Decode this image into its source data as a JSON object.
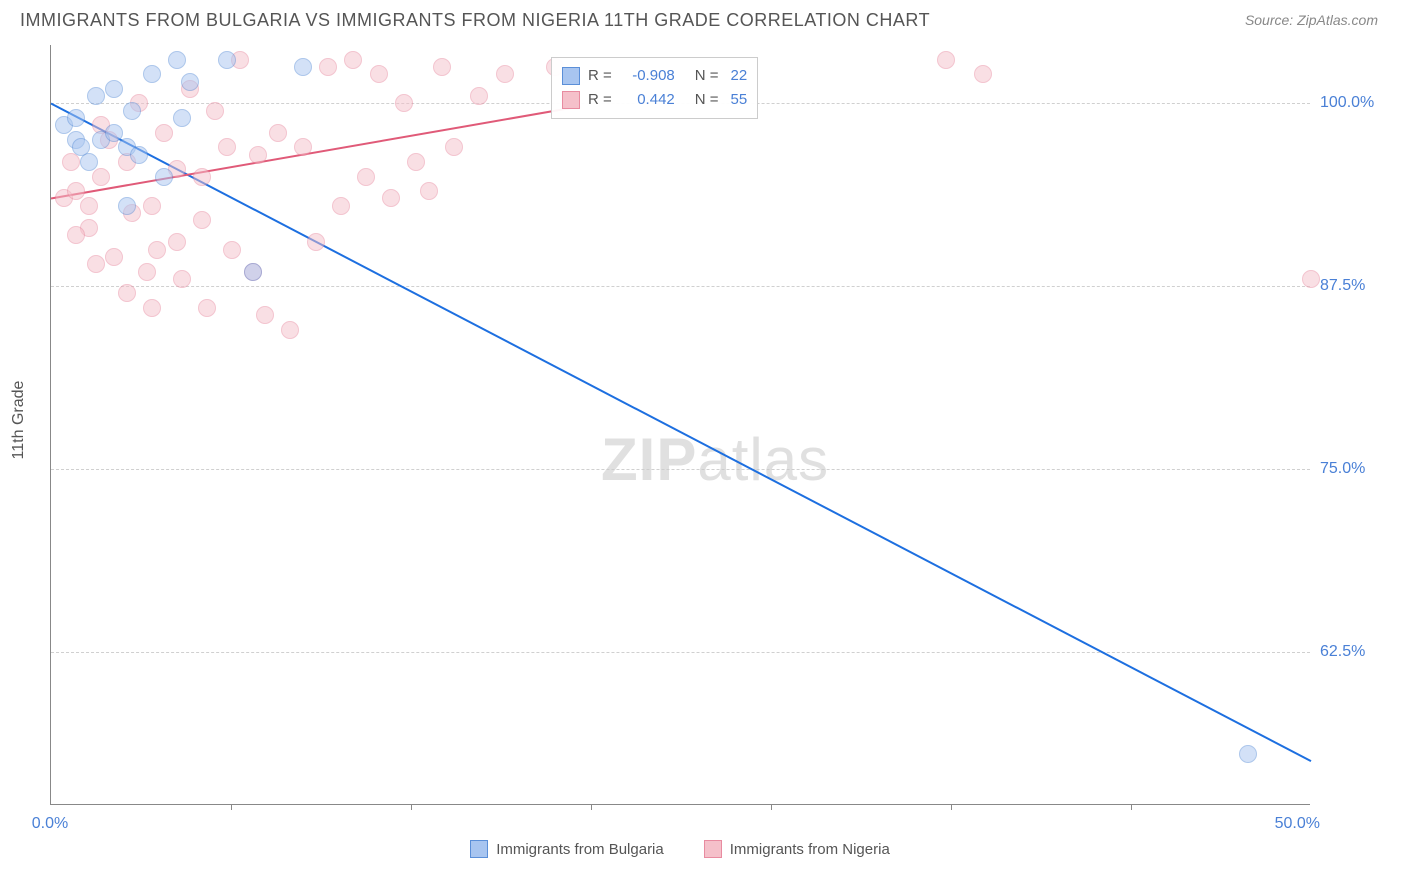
{
  "title": "IMMIGRANTS FROM BULGARIA VS IMMIGRANTS FROM NIGERIA 11TH GRADE CORRELATION CHART",
  "source": "Source: ZipAtlas.com",
  "watermark": {
    "part1": "ZIP",
    "part2": "atlas"
  },
  "y_axis_title": "11th Grade",
  "chart": {
    "type": "scatter",
    "xlim": [
      0,
      50
    ],
    "ylim": [
      52,
      104
    ],
    "x_ticks": [
      0,
      50
    ],
    "x_tick_labels": [
      "0.0%",
      "50.0%"
    ],
    "x_minor_ticks": [
      7.14,
      14.28,
      21.42,
      28.56,
      35.7,
      42.84
    ],
    "y_ticks": [
      62.5,
      75.0,
      87.5,
      100.0
    ],
    "y_tick_labels": [
      "62.5%",
      "75.0%",
      "87.5%",
      "100.0%"
    ],
    "grid_color": "#d0d0d0",
    "background": "#ffffff",
    "point_radius": 9,
    "point_opacity": 0.5,
    "line_width": 2
  },
  "series": {
    "bulgaria": {
      "label": "Immigrants from Bulgaria",
      "color_fill": "#a8c5f0",
      "color_stroke": "#5b8fd8",
      "line_color": "#1d6fe0",
      "R": "-0.908",
      "N": "22",
      "trend": {
        "x1": 0,
        "y1": 100,
        "x2": 50,
        "y2": 55
      },
      "points": [
        [
          0.5,
          98.5
        ],
        [
          1.0,
          99.0
        ],
        [
          1.0,
          97.5
        ],
        [
          1.5,
          96.0
        ],
        [
          1.8,
          100.5
        ],
        [
          2.0,
          97.5
        ],
        [
          2.5,
          101.0
        ],
        [
          2.5,
          98.0
        ],
        [
          3.0,
          97.0
        ],
        [
          3.2,
          99.5
        ],
        [
          3.5,
          96.5
        ],
        [
          4.0,
          102.0
        ],
        [
          4.5,
          95.0
        ],
        [
          5.0,
          103.0
        ],
        [
          5.2,
          99.0
        ],
        [
          5.5,
          101.5
        ],
        [
          7.0,
          103.0
        ],
        [
          8.0,
          88.5
        ],
        [
          10.0,
          102.5
        ],
        [
          3.0,
          93.0
        ],
        [
          47.5,
          55.5
        ],
        [
          1.2,
          97.0
        ]
      ]
    },
    "nigeria": {
      "label": "Immigrants from Nigeria",
      "color_fill": "#f5c0ca",
      "color_stroke": "#e88ba0",
      "line_color": "#e05a78",
      "R": "0.442",
      "N": "55",
      "trend": {
        "x1": 0,
        "y1": 93.5,
        "x2": 21,
        "y2": 99.8
      },
      "points": [
        [
          0.5,
          93.5
        ],
        [
          1.0,
          94.0
        ],
        [
          1.5,
          91.5
        ],
        [
          1.8,
          89.0
        ],
        [
          2.0,
          95.0
        ],
        [
          2.3,
          97.5
        ],
        [
          2.5,
          89.5
        ],
        [
          3.0,
          96.0
        ],
        [
          3.2,
          92.5
        ],
        [
          3.5,
          100.0
        ],
        [
          3.8,
          88.5
        ],
        [
          4.0,
          93.0
        ],
        [
          4.2,
          90.0
        ],
        [
          4.5,
          98.0
        ],
        [
          5.0,
          95.5
        ],
        [
          5.2,
          88.0
        ],
        [
          5.5,
          101.0
        ],
        [
          6.0,
          92.0
        ],
        [
          6.2,
          86.0
        ],
        [
          6.5,
          99.5
        ],
        [
          7.0,
          97.0
        ],
        [
          7.2,
          90.0
        ],
        [
          7.5,
          103.0
        ],
        [
          8.0,
          88.5
        ],
        [
          8.2,
          96.5
        ],
        [
          8.5,
          85.5
        ],
        [
          9.0,
          98.0
        ],
        [
          9.5,
          84.5
        ],
        [
          10.0,
          97.0
        ],
        [
          10.5,
          90.5
        ],
        [
          11.0,
          102.5
        ],
        [
          11.5,
          93.0
        ],
        [
          12.0,
          103.0
        ],
        [
          12.5,
          95.0
        ],
        [
          13.0,
          102.0
        ],
        [
          13.5,
          93.5
        ],
        [
          14.0,
          100.0
        ],
        [
          14.5,
          96.0
        ],
        [
          15.0,
          94.0
        ],
        [
          15.5,
          102.5
        ],
        [
          16.0,
          97.0
        ],
        [
          17.0,
          100.5
        ],
        [
          18.0,
          102.0
        ],
        [
          3.0,
          87.0
        ],
        [
          4.0,
          86.0
        ],
        [
          5.0,
          90.5
        ],
        [
          6.0,
          95.0
        ],
        [
          2.0,
          98.5
        ],
        [
          1.0,
          91.0
        ],
        [
          0.8,
          96.0
        ],
        [
          1.5,
          93.0
        ],
        [
          20.0,
          102.5
        ],
        [
          35.5,
          103.0
        ],
        [
          50.0,
          88.0
        ],
        [
          37.0,
          102.0
        ]
      ]
    }
  },
  "legend_box": {
    "rows": [
      {
        "swatch": "bulgaria",
        "r_label": "R =",
        "n_label": "N ="
      },
      {
        "swatch": "nigeria",
        "r_label": "R =",
        "n_label": "N ="
      }
    ]
  }
}
